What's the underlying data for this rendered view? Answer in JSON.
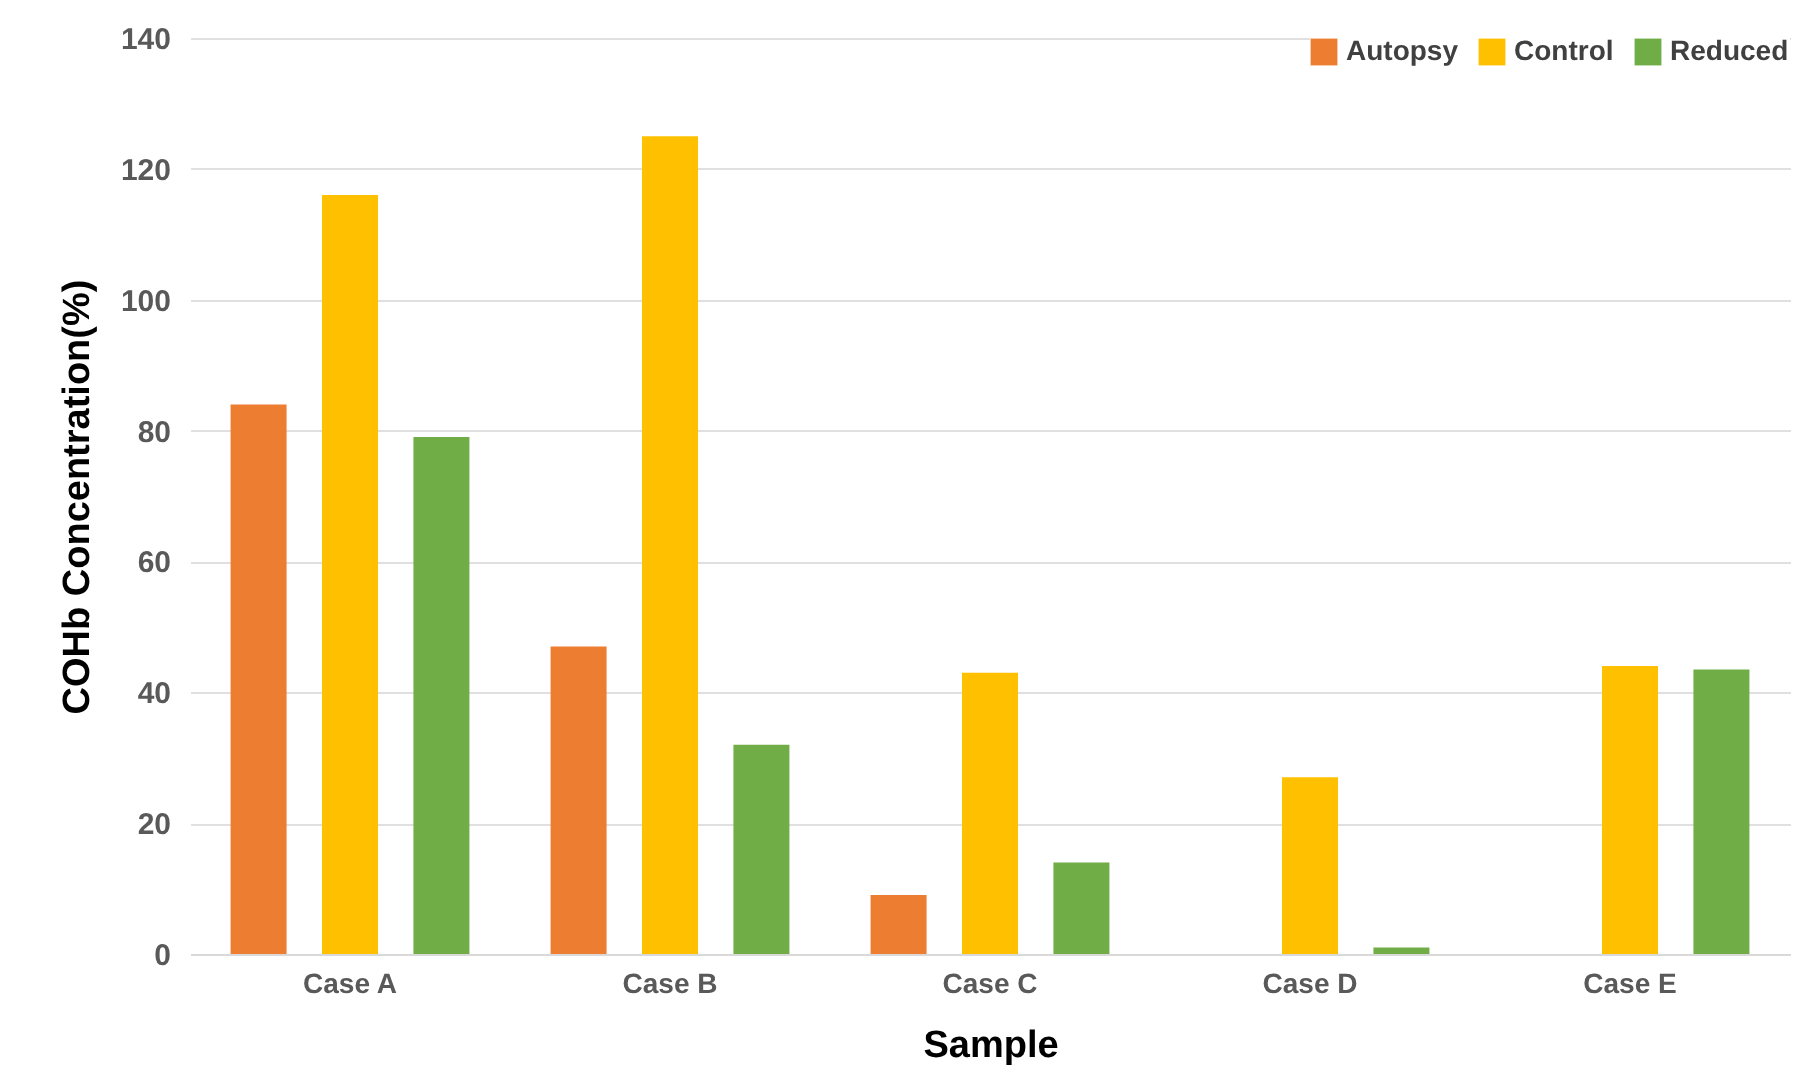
{
  "chart_data": {
    "type": "bar",
    "xlabel": "Sample",
    "ylabel": "COHb Concentration(%)",
    "categories": [
      "Case A",
      "Case B",
      "Case C",
      "Case D",
      "Case E"
    ],
    "series": [
      {
        "name": "Autopsy",
        "color": "#ed7d31",
        "values": [
          84,
          47,
          9,
          null,
          null
        ]
      },
      {
        "name": "Control",
        "color": "#ffc000",
        "values": [
          116,
          125,
          43,
          27,
          44
        ]
      },
      {
        "name": "Reduced",
        "color": "#70ad47",
        "values": [
          79,
          32,
          14,
          1,
          43.5
        ]
      }
    ],
    "ylim": [
      0,
      140
    ],
    "yticks": [
      0,
      20,
      40,
      60,
      80,
      100,
      120,
      140
    ],
    "grid": "y",
    "legend": "top right"
  }
}
